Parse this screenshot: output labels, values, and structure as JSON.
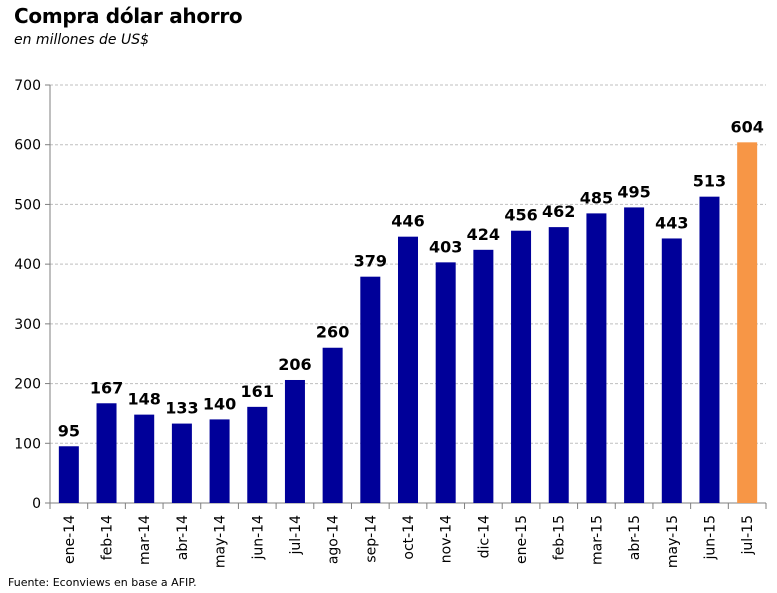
{
  "chart_data": {
    "type": "bar",
    "title": "Compra dólar ahorro",
    "subtitle": "en millones de US$",
    "source": "Fuente: Econviews en base a AFIP.",
    "categories": [
      "ene-14",
      "feb-14",
      "mar-14",
      "abr-14",
      "may-14",
      "jun-14",
      "jul-14",
      "ago-14",
      "sep-14",
      "oct-14",
      "nov-14",
      "dic-14",
      "ene-15",
      "feb-15",
      "mar-15",
      "abr-15",
      "may-15",
      "jun-15",
      "jul-15"
    ],
    "values": [
      95,
      167,
      148,
      133,
      140,
      161,
      206,
      260,
      379,
      446,
      403,
      424,
      456,
      462,
      485,
      495,
      443,
      513,
      604
    ],
    "ylim": [
      0,
      700
    ],
    "yticks": [
      0,
      100,
      200,
      300,
      400,
      500,
      600,
      700
    ],
    "grid": true,
    "colors": {
      "bar": "#000099",
      "highlight": "#F79646"
    },
    "highlight_index": 18
  }
}
